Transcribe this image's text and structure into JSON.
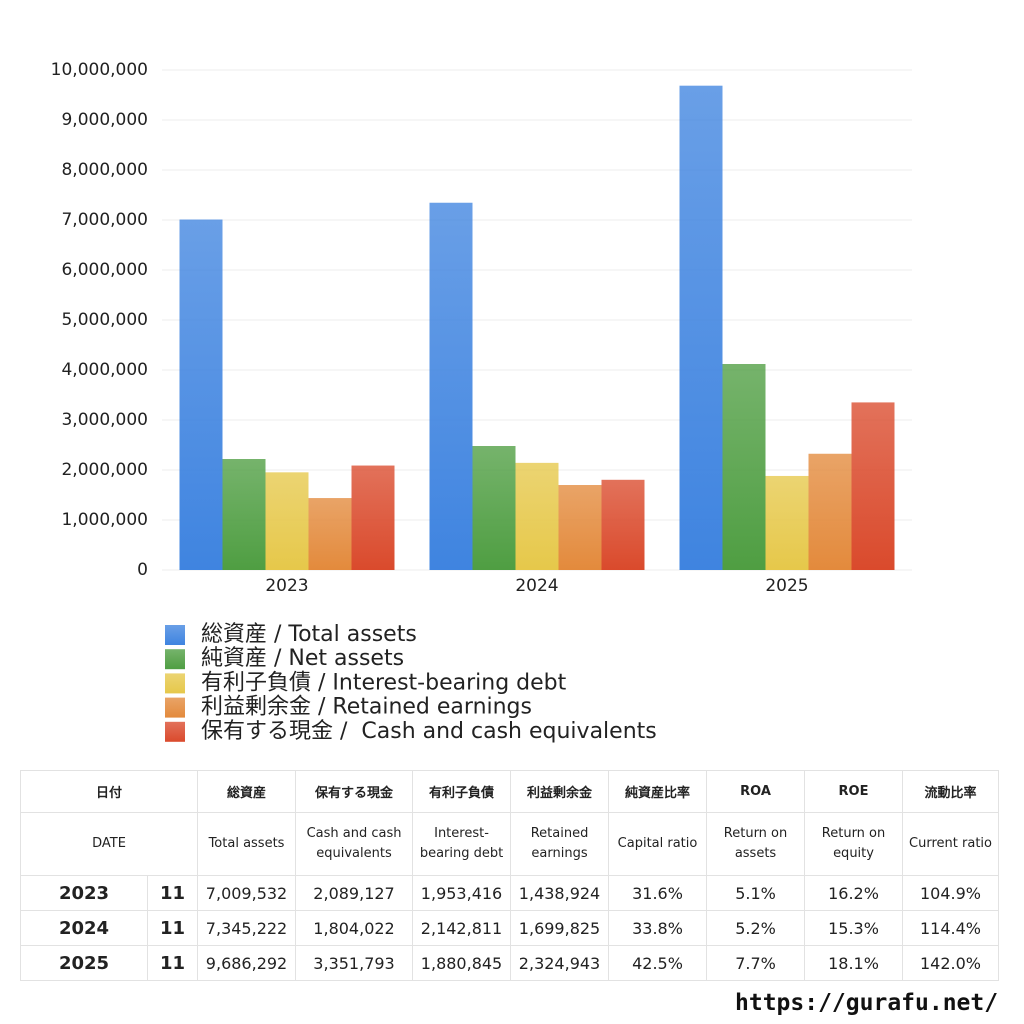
{
  "chart_data": {
    "type": "bar",
    "categories": [
      "2023",
      "2024",
      "2025"
    ],
    "series": [
      {
        "name": "総資産 / Total assets",
        "color": "#3f84e0",
        "values": [
          7009532,
          7345222,
          9686292
        ]
      },
      {
        "name": "純資産 / Net assets",
        "color": "#4f9e42",
        "values": [
          2220000,
          2480000,
          4120000
        ]
      },
      {
        "name": "有利子負債 / Interest-bearing debt",
        "color": "#e6c84a",
        "values": [
          1953416,
          2142811,
          1880845
        ]
      },
      {
        "name": "利益剰余金 / Retained earnings",
        "color": "#e38a3c",
        "values": [
          1438924,
          1699825,
          2324943
        ]
      },
      {
        "name": "保有する現金 /  Cash and cash equivalents",
        "color": "#da4a2c",
        "values": [
          2089127,
          1804022,
          3351793
        ]
      }
    ],
    "ylim": [
      0,
      10000000
    ],
    "yticks": [
      0,
      {
        "value": 1000000,
        "label": "1,000,000"
      },
      {
        "value": 2000000,
        "label": "2,000,000"
      },
      {
        "value": 3000000,
        "label": "3,000,000"
      },
      {
        "value": 4000000,
        "label": "4,000,000"
      },
      {
        "value": 5000000,
        "label": "5,000,000"
      },
      {
        "value": 6000000,
        "label": "6,000,000"
      },
      {
        "value": 7000000,
        "label": "7,000,000"
      },
      {
        "value": 8000000,
        "label": "8,000,000"
      },
      {
        "value": 9000000,
        "label": "9,000,000"
      },
      {
        "value": 10000000,
        "label": "10,000,000"
      }
    ],
    "grid": true
  },
  "table": {
    "header_ja": [
      "日付",
      "総資産",
      "保有する現金",
      "有利子負債",
      "利益剰余金",
      "純資産比率",
      "ROA",
      "ROE",
      "流動比率"
    ],
    "header_en": [
      "DATE",
      "Total assets",
      "Cash and cash equivalents",
      "Interest-bearing debt",
      "Retained earnings",
      "Capital ratio",
      "Return on assets",
      "Return on equity",
      "Current ratio"
    ],
    "rows": [
      [
        "2023",
        "11",
        "7,009,532",
        "2,089,127",
        "1,953,416",
        "1,438,924",
        "31.6%",
        "5.1%",
        "16.2%",
        "104.9%"
      ],
      [
        "2024",
        "11",
        "7,345,222",
        "1,804,022",
        "2,142,811",
        "1,699,825",
        "33.8%",
        "5.2%",
        "15.3%",
        "114.4%"
      ],
      [
        "2025",
        "11",
        "9,686,292",
        "3,351,793",
        "1,880,845",
        "2,324,943",
        "42.5%",
        "7.7%",
        "18.1%",
        "142.0%"
      ]
    ]
  },
  "footer": {
    "url": "https://gurafu.net/"
  }
}
